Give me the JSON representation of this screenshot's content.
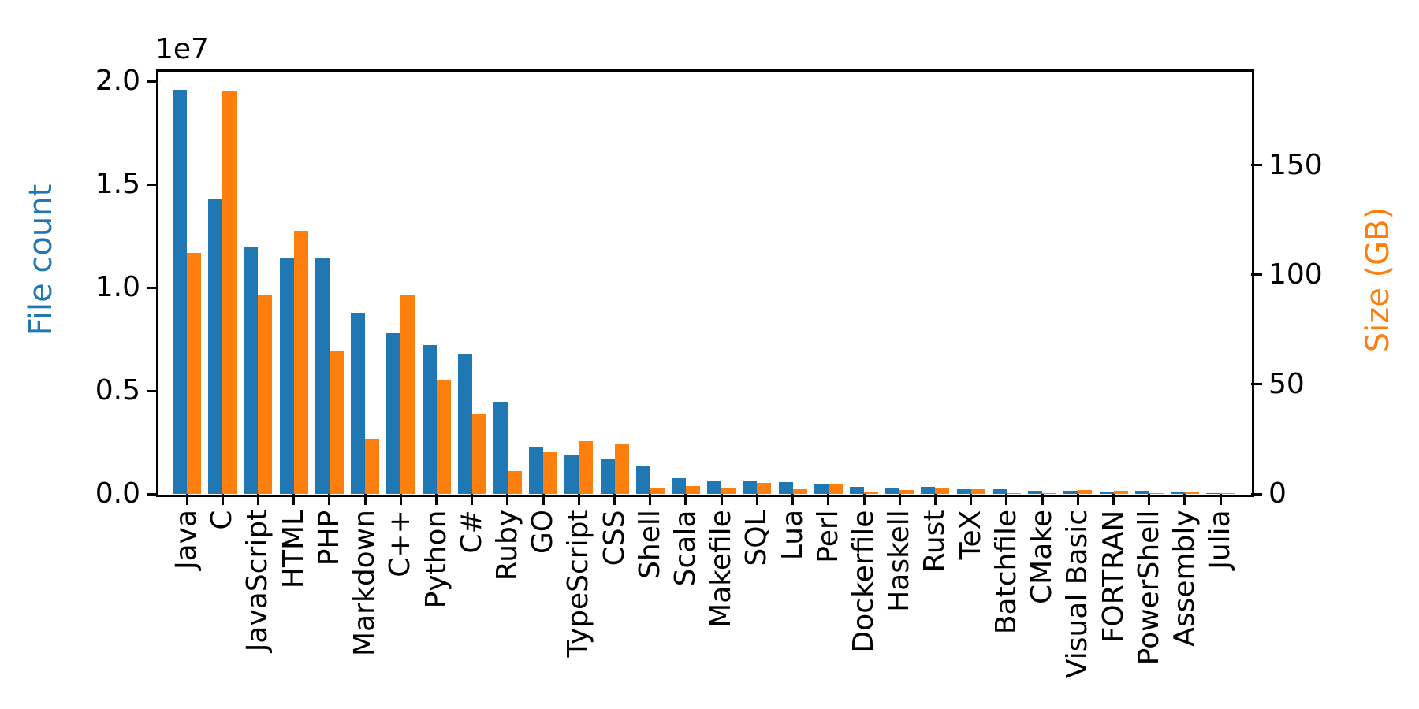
{
  "chart_data": {
    "type": "bar",
    "title": "",
    "grid": false,
    "legend": null,
    "categories": [
      "Java",
      "C",
      "JavaScript",
      "HTML",
      "PHP",
      "Markdown",
      "C++",
      "Python",
      "C#",
      "Ruby",
      "GO",
      "TypeScript",
      "CSS",
      "Shell",
      "Scala",
      "Makefile",
      "SQL",
      "Lua",
      "Perl",
      "Dockerfile",
      "Haskell",
      "Rust",
      "TeX",
      "Batchfile",
      "CMake",
      "Visual Basic",
      "FORTRAN",
      "PowerShell",
      "Assembly",
      "Julia"
    ],
    "series": [
      {
        "name": "File count",
        "axis": "left",
        "color": "#1f77b4",
        "values": [
          19600000,
          14300000,
          12000000,
          11400000,
          11400000,
          8800000,
          7800000,
          7200000,
          6800000,
          4450000,
          2250000,
          1900000,
          1700000,
          1350000,
          780000,
          630000,
          630000,
          580000,
          480000,
          340000,
          300000,
          350000,
          220000,
          240000,
          150000,
          150000,
          110000,
          160000,
          100000,
          50000
        ]
      },
      {
        "name": "Size (GB)",
        "axis": "right",
        "color": "#ff7f0e",
        "values": [
          110,
          184,
          91,
          120,
          65,
          25,
          91,
          52,
          36.5,
          10.5,
          19,
          24,
          22.5,
          2.6,
          3.5,
          2.5,
          5.2,
          2.3,
          4.6,
          0.9,
          1.8,
          2.4,
          2.1,
          0.45,
          0.3,
          1.8,
          1.6,
          0.5,
          0.65,
          0.25
        ]
      }
    ],
    "left_axis": {
      "label": "File count",
      "label_color": "#1f77b4",
      "offset_text": "1e7",
      "tick_labels": [
        "0.0",
        "0.5",
        "1.0",
        "1.5",
        "2.0"
      ],
      "tick_values": [
        0,
        5000000,
        10000000,
        15000000,
        20000000
      ],
      "ylim": [
        0,
        20500000
      ]
    },
    "right_axis": {
      "label": "Size (GB)",
      "label_color": "#ff7f0e",
      "tick_labels": [
        "0",
        "50",
        "100",
        "150"
      ],
      "tick_values": [
        0,
        50,
        100,
        150
      ],
      "ylim": [
        0,
        193
      ]
    }
  }
}
